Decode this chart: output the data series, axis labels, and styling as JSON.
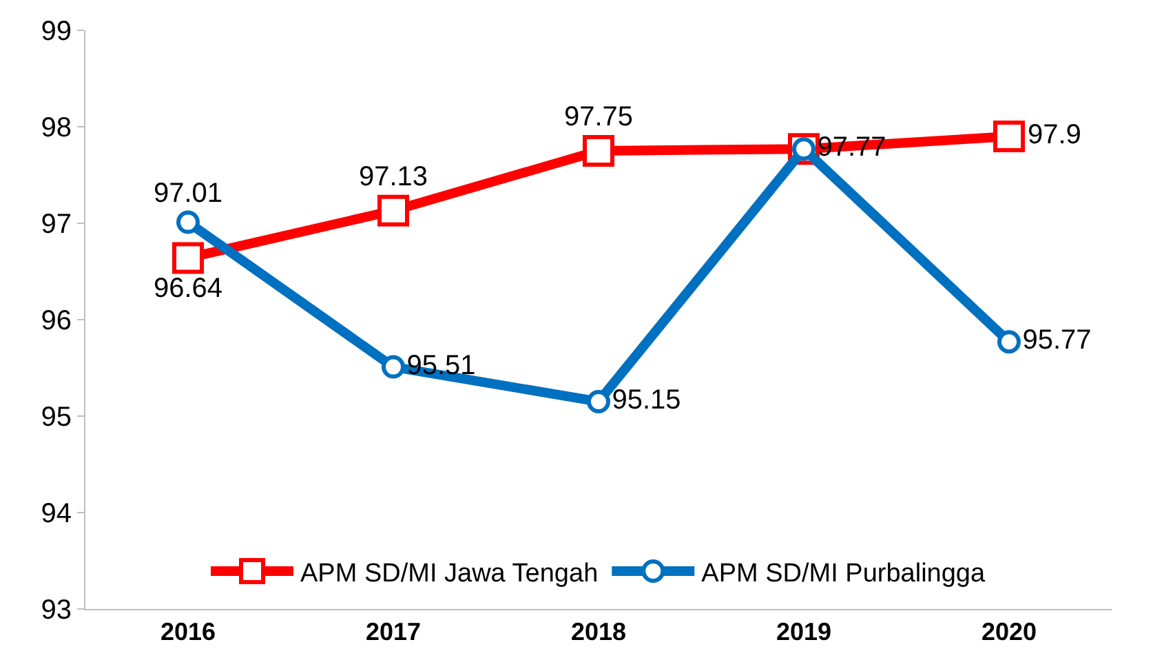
{
  "chart_data": {
    "type": "line",
    "categories": [
      "2016",
      "2017",
      "2018",
      "2019",
      "2020"
    ],
    "series": [
      {
        "name": "APM SD/MI Jawa Tengah",
        "color": "#ff0000",
        "marker": "square",
        "values": [
          96.64,
          97.13,
          97.75,
          97.77,
          97.9
        ],
        "value_labels": [
          "96.64",
          "97.13",
          "97.75",
          null,
          "97.9"
        ]
      },
      {
        "name": "APM SD/MI Purbalingga",
        "color": "#0070c0",
        "marker": "circle",
        "values": [
          97.01,
          95.51,
          95.15,
          97.77,
          95.77
        ],
        "value_labels": [
          "97.01",
          "95.51",
          "95.15",
          "97.77",
          "95.77"
        ]
      }
    ],
    "ylim": [
      93,
      99
    ],
    "yticks": [
      93,
      94,
      95,
      96,
      97,
      98,
      99
    ],
    "grid": false,
    "legend": "bottom",
    "line_style": "solid"
  }
}
